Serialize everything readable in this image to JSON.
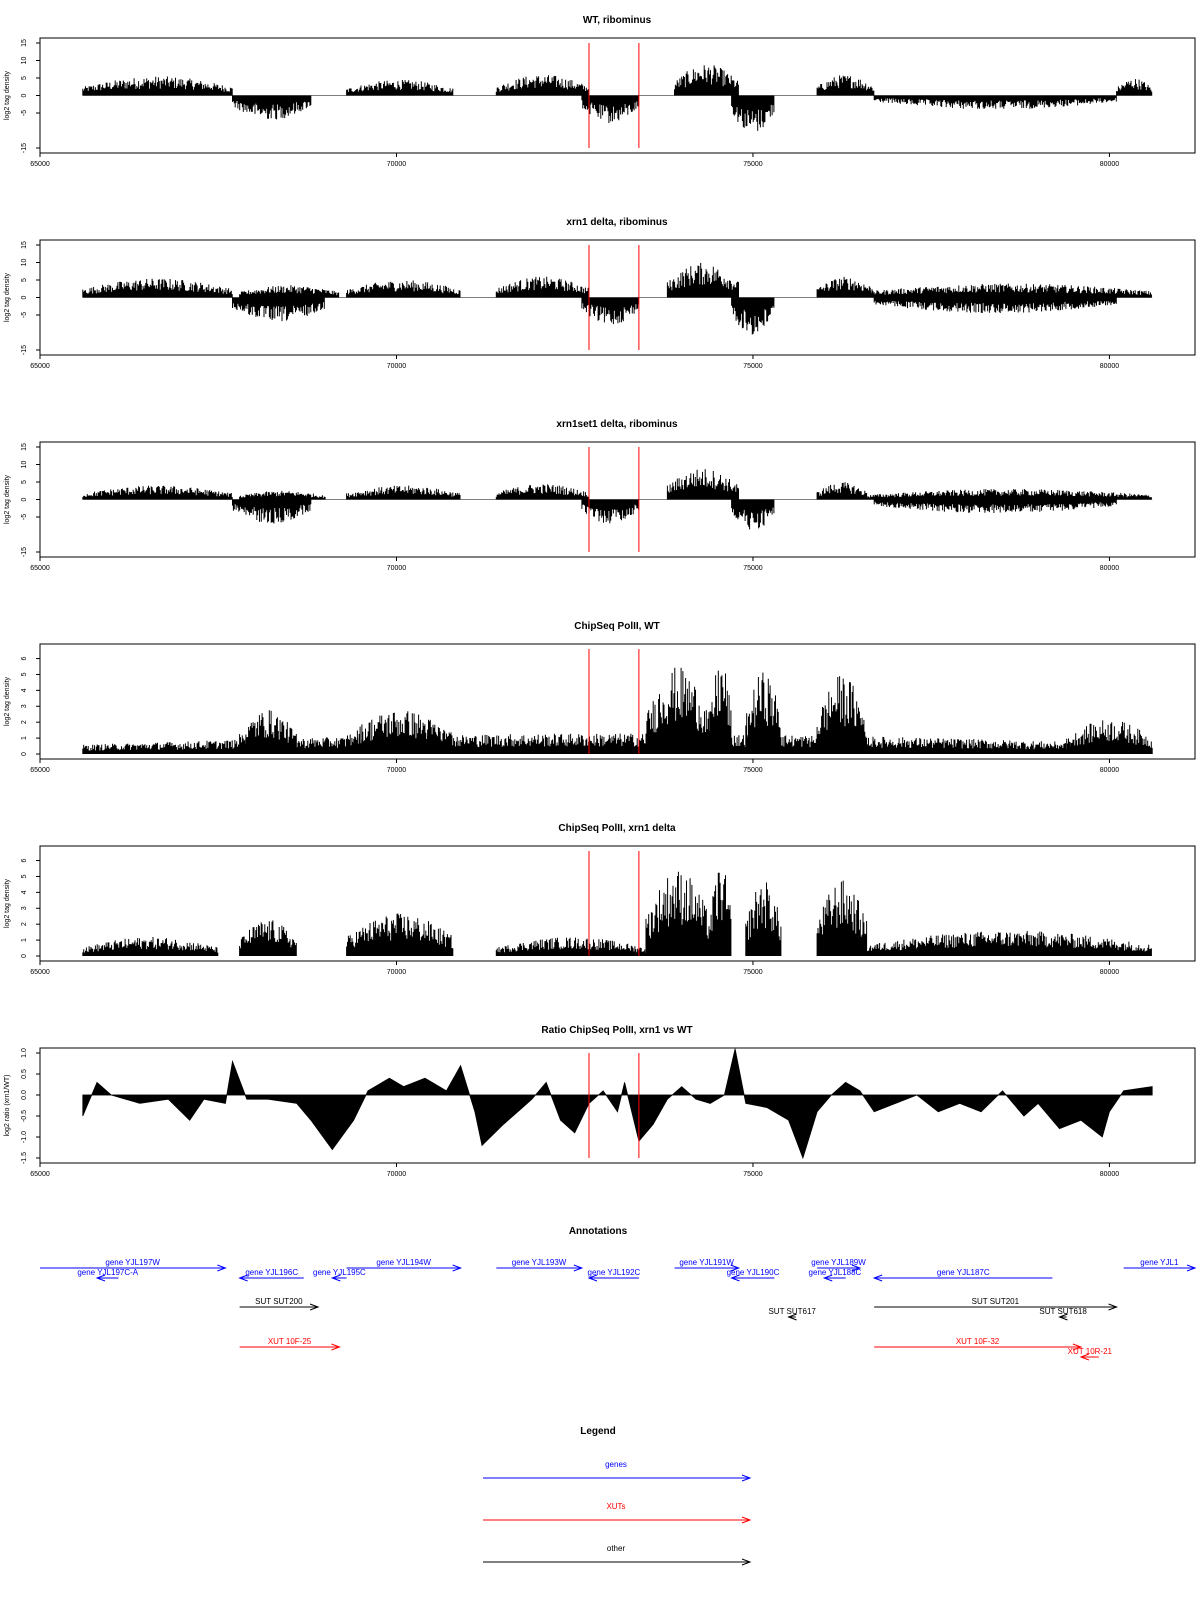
{
  "chart_data": [
    {
      "type": "bar",
      "title": "WT, ribominus",
      "ylabel": "log2 tag density",
      "ylim": [
        -15,
        15
      ],
      "yticks": [
        "-15",
        "-5",
        "0",
        "5",
        "10",
        "15"
      ],
      "xlim": [
        65000,
        81200
      ],
      "xticks": [
        "65000",
        "70000",
        "75000",
        "80000"
      ],
      "markers": [
        72700,
        73400
      ],
      "segments": [
        {
          "from": 65600,
          "to": 67700,
          "sign": 1,
          "amp": 5.5
        },
        {
          "from": 67700,
          "to": 68800,
          "sign": -1,
          "amp": 7
        },
        {
          "from": 69300,
          "to": 70800,
          "sign": 1,
          "amp": 4.5
        },
        {
          "from": 71400,
          "to": 72700,
          "sign": 1,
          "amp": 6
        },
        {
          "from": 72600,
          "to": 73400,
          "sign": -1,
          "amp": 8
        },
        {
          "from": 73900,
          "to": 74800,
          "sign": 1,
          "amp": 9
        },
        {
          "from": 74700,
          "to": 75300,
          "sign": -1,
          "amp": 11
        },
        {
          "from": 75900,
          "to": 76700,
          "sign": 1,
          "amp": 6
        },
        {
          "from": 76700,
          "to": 80100,
          "sign": -1,
          "amp": 4
        },
        {
          "from": 80100,
          "to": 80600,
          "sign": 1,
          "amp": 5
        }
      ]
    },
    {
      "type": "bar",
      "title": "xrn1 delta, ribominus",
      "ylabel": "log2 tag density",
      "ylim": [
        -15,
        15
      ],
      "yticks": [
        "-15",
        "-5",
        "0",
        "5",
        "10",
        "15"
      ],
      "xlim": [
        65000,
        81200
      ],
      "xticks": [
        "65000",
        "70000",
        "75000",
        "80000"
      ],
      "markers": [
        72700,
        73400
      ],
      "segments": [
        {
          "from": 65600,
          "to": 67700,
          "sign": 1,
          "amp": 5.5
        },
        {
          "from": 67700,
          "to": 69000,
          "sign": -1,
          "amp": 7
        },
        {
          "from": 67800,
          "to": 69200,
          "sign": 1,
          "amp": 3.5
        },
        {
          "from": 69300,
          "to": 70900,
          "sign": 1,
          "amp": 5
        },
        {
          "from": 71400,
          "to": 72700,
          "sign": 1,
          "amp": 6
        },
        {
          "from": 72600,
          "to": 73400,
          "sign": -1,
          "amp": 8
        },
        {
          "from": 73800,
          "to": 74800,
          "sign": 1,
          "amp": 10
        },
        {
          "from": 74700,
          "to": 75300,
          "sign": -1,
          "amp": 11
        },
        {
          "from": 75900,
          "to": 76700,
          "sign": 1,
          "amp": 6
        },
        {
          "from": 76600,
          "to": 80600,
          "sign": 1,
          "amp": 4
        },
        {
          "from": 76700,
          "to": 80100,
          "sign": -1,
          "amp": 4.5
        }
      ]
    },
    {
      "type": "bar",
      "title": "xrn1set1 delta, ribominus",
      "ylabel": "log2 tag density",
      "ylim": [
        -15,
        15
      ],
      "yticks": [
        "-15",
        "-5",
        "0",
        "5",
        "10",
        "15"
      ],
      "xlim": [
        65000,
        81200
      ],
      "xticks": [
        "65000",
        "70000",
        "75000",
        "80000"
      ],
      "markers": [
        72700,
        73400
      ],
      "segments": [
        {
          "from": 65600,
          "to": 67700,
          "sign": 1,
          "amp": 4
        },
        {
          "from": 67700,
          "to": 68800,
          "sign": -1,
          "amp": 7
        },
        {
          "from": 67800,
          "to": 69000,
          "sign": 1,
          "amp": 2.5
        },
        {
          "from": 69300,
          "to": 70900,
          "sign": 1,
          "amp": 4
        },
        {
          "from": 71400,
          "to": 72700,
          "sign": 1,
          "amp": 4.5
        },
        {
          "from": 72600,
          "to": 73400,
          "sign": -1,
          "amp": 7
        },
        {
          "from": 73800,
          "to": 74800,
          "sign": 1,
          "amp": 9
        },
        {
          "from": 74700,
          "to": 75300,
          "sign": -1,
          "amp": 9
        },
        {
          "from": 75900,
          "to": 76600,
          "sign": 1,
          "amp": 5
        },
        {
          "from": 76600,
          "to": 80600,
          "sign": 1,
          "amp": 3
        },
        {
          "from": 76700,
          "to": 80100,
          "sign": -1,
          "amp": 4
        }
      ]
    },
    {
      "type": "bar",
      "title": "ChipSeq PolII, WT",
      "ylabel": "log2 tag density",
      "ylim": [
        0,
        6.6
      ],
      "yticks": [
        "0",
        "1",
        "2",
        "3",
        "4",
        "5",
        "6"
      ],
      "xlim": [
        65000,
        81200
      ],
      "xticks": [
        "65000",
        "70000",
        "75000",
        "80000"
      ],
      "markers": [
        72700,
        73400
      ],
      "segments": [
        {
          "from": 65600,
          "to": 80600,
          "sign": 1,
          "amp": 1.3
        },
        {
          "from": 67800,
          "to": 68600,
          "sign": 1,
          "amp": 2.8
        },
        {
          "from": 69300,
          "to": 70800,
          "sign": 1,
          "amp": 2.8
        },
        {
          "from": 73500,
          "to": 74400,
          "sign": 1,
          "amp": 5.5
        },
        {
          "from": 74400,
          "to": 74700,
          "sign": 1,
          "amp": 6
        },
        {
          "from": 74900,
          "to": 75400,
          "sign": 1,
          "amp": 5.2
        },
        {
          "from": 75900,
          "to": 76600,
          "sign": 1,
          "amp": 5
        },
        {
          "from": 79400,
          "to": 80600,
          "sign": 1,
          "amp": 2.2
        }
      ]
    },
    {
      "type": "bar",
      "title": "ChipSeq PolII, xrn1 delta",
      "ylabel": "log2 tag density",
      "ylim": [
        0,
        6.6
      ],
      "yticks": [
        "0",
        "1",
        "2",
        "3",
        "4",
        "5",
        "6"
      ],
      "xlim": [
        65000,
        81200
      ],
      "xticks": [
        "65000",
        "70000",
        "75000",
        "80000"
      ],
      "markers": [
        72700,
        73400
      ],
      "segments": [
        {
          "from": 65600,
          "to": 67500,
          "sign": 1,
          "amp": 1.2
        },
        {
          "from": 67800,
          "to": 68600,
          "sign": 1,
          "amp": 2.3
        },
        {
          "from": 69300,
          "to": 70800,
          "sign": 1,
          "amp": 2.7
        },
        {
          "from": 71400,
          "to": 73500,
          "sign": 1,
          "amp": 1.2
        },
        {
          "from": 73500,
          "to": 74400,
          "sign": 1,
          "amp": 5.5
        },
        {
          "from": 74400,
          "to": 74700,
          "sign": 1,
          "amp": 5.8
        },
        {
          "from": 74900,
          "to": 75400,
          "sign": 1,
          "amp": 4.8
        },
        {
          "from": 75900,
          "to": 76600,
          "sign": 1,
          "amp": 4.8
        },
        {
          "from": 76600,
          "to": 80600,
          "sign": 1,
          "amp": 1.6
        }
      ]
    },
    {
      "type": "area",
      "title": "Ratio ChipSeq PolII, xrn1 vs WT",
      "ylabel": "log2 ratio (xrn1/WT)",
      "ylim": [
        -1.5,
        1.0
      ],
      "yticks": [
        "-1.5",
        "-1.0",
        "-0.5",
        "0.0",
        "0.5",
        "1.0"
      ],
      "xlim": [
        65000,
        81200
      ],
      "xticks": [
        "65000",
        "70000",
        "75000",
        "80000"
      ],
      "markers": [
        72700,
        73400
      ],
      "points": [
        [
          65600,
          -0.5
        ],
        [
          65800,
          0.3
        ],
        [
          66000,
          0.0
        ],
        [
          66400,
          -0.2
        ],
        [
          66800,
          -0.1
        ],
        [
          67100,
          -0.6
        ],
        [
          67300,
          -0.1
        ],
        [
          67600,
          -0.2
        ],
        [
          67700,
          0.8
        ],
        [
          67900,
          -0.1
        ],
        [
          68200,
          -0.1
        ],
        [
          68600,
          -0.2
        ],
        [
          68800,
          -0.6
        ],
        [
          69100,
          -1.3
        ],
        [
          69400,
          -0.6
        ],
        [
          69600,
          0.1
        ],
        [
          69900,
          0.4
        ],
        [
          70100,
          0.2
        ],
        [
          70400,
          0.4
        ],
        [
          70700,
          0.1
        ],
        [
          70900,
          0.7
        ],
        [
          71100,
          -0.4
        ],
        [
          71200,
          -1.2
        ],
        [
          71500,
          -0.7
        ],
        [
          71700,
          -0.4
        ],
        [
          71900,
          -0.1
        ],
        [
          72100,
          0.3
        ],
        [
          72300,
          -0.6
        ],
        [
          72500,
          -0.9
        ],
        [
          72700,
          -0.2
        ],
        [
          72900,
          0.1
        ],
        [
          73100,
          -0.4
        ],
        [
          73200,
          0.3
        ],
        [
          73400,
          -1.1
        ],
        [
          73600,
          -0.7
        ],
        [
          73800,
          -0.1
        ],
        [
          74000,
          0.2
        ],
        [
          74200,
          -0.1
        ],
        [
          74400,
          -0.2
        ],
        [
          74600,
          0.0
        ],
        [
          74750,
          1.1
        ],
        [
          74900,
          -0.2
        ],
        [
          75200,
          -0.3
        ],
        [
          75500,
          -0.6
        ],
        [
          75700,
          -1.5
        ],
        [
          75900,
          -0.4
        ],
        [
          76100,
          0.0
        ],
        [
          76300,
          0.3
        ],
        [
          76500,
          0.1
        ],
        [
          76700,
          -0.4
        ],
        [
          77000,
          -0.2
        ],
        [
          77300,
          0.0
        ],
        [
          77600,
          -0.4
        ],
        [
          77900,
          -0.2
        ],
        [
          78200,
          -0.4
        ],
        [
          78500,
          0.1
        ],
        [
          78800,
          -0.5
        ],
        [
          79000,
          -0.2
        ],
        [
          79300,
          -0.8
        ],
        [
          79600,
          -0.6
        ],
        [
          79900,
          -1.0
        ],
        [
          80000,
          -0.4
        ],
        [
          80200,
          0.1
        ],
        [
          80600,
          0.2
        ]
      ]
    }
  ],
  "annotations": {
    "title": "Annotations",
    "items": [
      {
        "label": "gene YJL197W",
        "from": 65000,
        "to": 67600,
        "dir": 1,
        "row": 0,
        "color": "#0000ff"
      },
      {
        "label": "gene YJL197C-A",
        "from": 65800,
        "to": 66100,
        "dir": -1,
        "row": 1,
        "color": "#0000ff"
      },
      {
        "label": "gene YJL196C",
        "from": 67800,
        "to": 68700,
        "dir": -1,
        "row": 1,
        "color": "#0000ff"
      },
      {
        "label": "gene YJL194W",
        "from": 69300,
        "to": 70900,
        "dir": 1,
        "row": 0,
        "color": "#0000ff"
      },
      {
        "label": "gene YJL195C",
        "from": 69100,
        "to": 69300,
        "dir": -1,
        "row": 1,
        "color": "#0000ff"
      },
      {
        "label": "gene YJL193W",
        "from": 71400,
        "to": 72600,
        "dir": 1,
        "row": 0,
        "color": "#0000ff"
      },
      {
        "label": "gene YJL192C",
        "from": 72700,
        "to": 73400,
        "dir": -1,
        "row": 1,
        "color": "#0000ff"
      },
      {
        "label": "gene YJL191W",
        "from": 73900,
        "to": 74800,
        "dir": 1,
        "row": 0,
        "color": "#0000ff"
      },
      {
        "label": "gene YJL190C",
        "from": 74700,
        "to": 75300,
        "dir": -1,
        "row": 1,
        "color": "#0000ff"
      },
      {
        "label": "gene YJL189W",
        "from": 75900,
        "to": 76500,
        "dir": 1,
        "row": 0,
        "color": "#0000ff"
      },
      {
        "label": "gene YJL188C",
        "from": 76000,
        "to": 76300,
        "dir": -1,
        "row": 1,
        "color": "#0000ff"
      },
      {
        "label": "gene YJL187C",
        "from": 76700,
        "to": 79200,
        "dir": -1,
        "row": 1,
        "color": "#0000ff"
      },
      {
        "label": "gene YJL1",
        "from": 80200,
        "to": 81200,
        "dir": 1,
        "row": 0,
        "color": "#0000ff"
      },
      {
        "label": "SUT SUT200",
        "from": 67800,
        "to": 68900,
        "dir": 1,
        "row": 2,
        "color": "#000000"
      },
      {
        "label": "SUT SUT617",
        "from": 75500,
        "to": 75600,
        "dir": -1,
        "row": 3,
        "color": "#000000"
      },
      {
        "label": "SUT SUT201",
        "from": 76700,
        "to": 80100,
        "dir": 1,
        "row": 2,
        "color": "#000000"
      },
      {
        "label": "SUT SUT618",
        "from": 79300,
        "to": 79400,
        "dir": -1,
        "row": 3,
        "color": "#000000"
      },
      {
        "label": "XUT 10F-25",
        "from": 67800,
        "to": 69200,
        "dir": 1,
        "row": 4,
        "color": "#ff0000"
      },
      {
        "label": "XUT 10F-32",
        "from": 76700,
        "to": 79600,
        "dir": 1,
        "row": 4,
        "color": "#ff0000"
      },
      {
        "label": "XUT 10R-21",
        "from": 79600,
        "to": 79850,
        "dir": -1,
        "row": 5,
        "color": "#ff0000"
      }
    ]
  },
  "legend": {
    "title": "Legend",
    "items": [
      {
        "label": "genes",
        "color": "#0000ff"
      },
      {
        "label": "XUTs",
        "color": "#ff0000"
      },
      {
        "label": "other",
        "color": "#000000"
      }
    ]
  }
}
